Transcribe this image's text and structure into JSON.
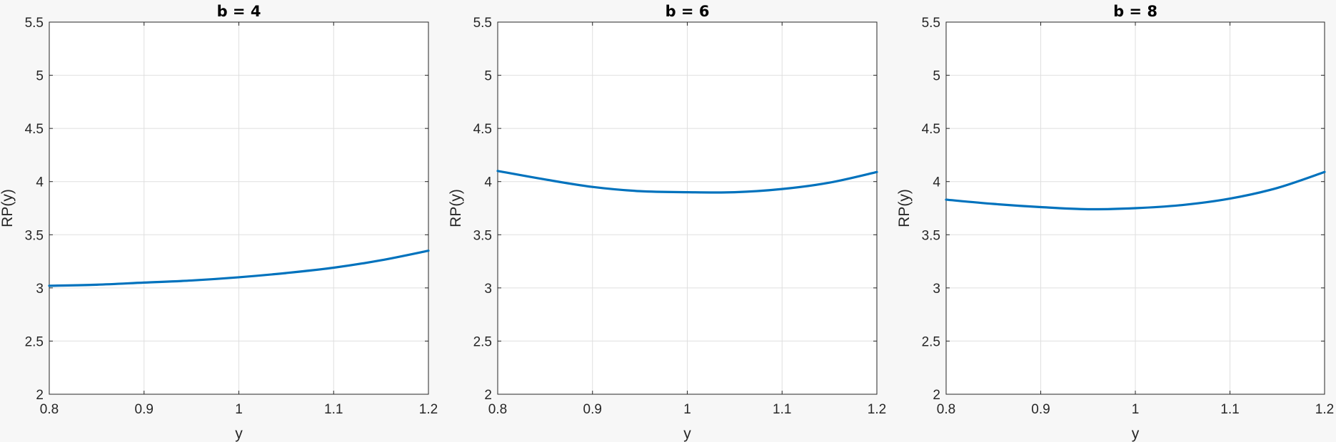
{
  "chart_data": [
    {
      "type": "line",
      "title": "b = 4",
      "xlabel": "y",
      "ylabel": "RP(y)",
      "xlim": [
        0.8,
        1.2
      ],
      "ylim": [
        2,
        5.5
      ],
      "xticks": [
        "0.8",
        "0.9",
        "1",
        "1.1",
        "1.2"
      ],
      "yticks": [
        "2",
        "2.5",
        "3",
        "3.5",
        "4",
        "4.5",
        "5",
        "5.5"
      ],
      "grid": true,
      "series": [
        {
          "x": [
            0.8,
            0.85,
            0.9,
            0.95,
            1.0,
            1.05,
            1.1,
            1.15,
            1.2
          ],
          "y": [
            3.02,
            3.03,
            3.05,
            3.07,
            3.1,
            3.14,
            3.19,
            3.26,
            3.35
          ],
          "color": "#0072BD"
        }
      ]
    },
    {
      "type": "line",
      "title": "b = 6",
      "xlabel": "y",
      "ylabel": "RP(y)",
      "xlim": [
        0.8,
        1.2
      ],
      "ylim": [
        2,
        5.5
      ],
      "xticks": [
        "0.8",
        "0.9",
        "1",
        "1.1",
        "1.2"
      ],
      "yticks": [
        "2",
        "2.5",
        "3",
        "3.5",
        "4",
        "4.5",
        "5",
        "5.5"
      ],
      "grid": true,
      "series": [
        {
          "x": [
            0.8,
            0.85,
            0.9,
            0.95,
            1.0,
            1.05,
            1.1,
            1.15,
            1.2
          ],
          "y": [
            4.1,
            4.02,
            3.95,
            3.91,
            3.9,
            3.9,
            3.93,
            3.99,
            4.09
          ],
          "color": "#0072BD"
        }
      ]
    },
    {
      "type": "line",
      "title": "b = 8",
      "xlabel": "y",
      "ylabel": "RP(y)",
      "xlim": [
        0.8,
        1.2
      ],
      "ylim": [
        2,
        5.5
      ],
      "xticks": [
        "0.8",
        "0.9",
        "1",
        "1.1",
        "1.2"
      ],
      "yticks": [
        "2",
        "2.5",
        "3",
        "3.5",
        "4",
        "4.5",
        "5",
        "5.5"
      ],
      "grid": true,
      "series": [
        {
          "x": [
            0.8,
            0.85,
            0.9,
            0.95,
            1.0,
            1.05,
            1.1,
            1.15,
            1.2
          ],
          "y": [
            3.83,
            3.79,
            3.76,
            3.74,
            3.75,
            3.78,
            3.84,
            3.94,
            4.09
          ],
          "color": "#0072BD"
        }
      ]
    }
  ]
}
